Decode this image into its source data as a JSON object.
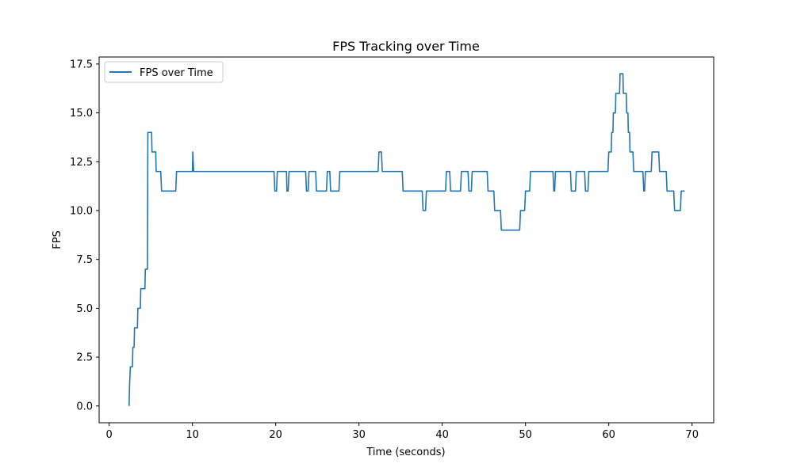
{
  "chart_data": {
    "type": "line",
    "title": "FPS Tracking over Time",
    "xlabel": "Time (seconds)",
    "ylabel": "FPS",
    "xlim": [
      -1.2,
      72.6
    ],
    "ylim": [
      -0.86,
      17.86
    ],
    "xticks": [
      0,
      10,
      20,
      30,
      40,
      50,
      60,
      70
    ],
    "yticks": [
      0.0,
      2.5,
      5.0,
      7.5,
      10.0,
      12.5,
      15.0,
      17.5
    ],
    "ytick_labels": [
      "0.0",
      "2.5",
      "5.0",
      "7.5",
      "10.0",
      "12.5",
      "15.0",
      "17.5"
    ],
    "grid": false,
    "legend": "upper-left",
    "line_color": "#1f77b4",
    "series": [
      {
        "name": "FPS over Time",
        "points": [
          [
            2.4,
            0
          ],
          [
            2.45,
            1
          ],
          [
            2.55,
            2
          ],
          [
            2.8,
            2
          ],
          [
            2.85,
            3
          ],
          [
            3.0,
            3
          ],
          [
            3.05,
            4
          ],
          [
            3.4,
            4
          ],
          [
            3.45,
            5
          ],
          [
            3.75,
            5
          ],
          [
            3.8,
            6
          ],
          [
            4.3,
            6
          ],
          [
            4.35,
            7
          ],
          [
            4.6,
            7
          ],
          [
            4.65,
            14
          ],
          [
            5.1,
            14
          ],
          [
            5.15,
            13
          ],
          [
            5.6,
            13
          ],
          [
            5.65,
            12
          ],
          [
            6.2,
            12
          ],
          [
            6.3,
            11
          ],
          [
            8.0,
            11
          ],
          [
            8.1,
            12
          ],
          [
            10.0,
            12
          ],
          [
            10.05,
            13
          ],
          [
            10.15,
            12
          ],
          [
            19.8,
            12
          ],
          [
            19.9,
            11
          ],
          [
            20.1,
            11
          ],
          [
            20.2,
            12
          ],
          [
            21.3,
            12
          ],
          [
            21.35,
            11
          ],
          [
            21.5,
            11
          ],
          [
            21.6,
            12
          ],
          [
            23.6,
            12
          ],
          [
            23.7,
            11
          ],
          [
            23.9,
            11
          ],
          [
            24.0,
            12
          ],
          [
            24.8,
            12
          ],
          [
            24.9,
            11
          ],
          [
            26.1,
            11
          ],
          [
            26.2,
            12
          ],
          [
            26.5,
            12
          ],
          [
            26.6,
            11
          ],
          [
            27.6,
            11
          ],
          [
            27.7,
            12
          ],
          [
            32.3,
            12
          ],
          [
            32.4,
            13
          ],
          [
            32.7,
            13
          ],
          [
            32.8,
            12
          ],
          [
            35.2,
            12
          ],
          [
            35.3,
            11
          ],
          [
            37.6,
            11
          ],
          [
            37.7,
            10
          ],
          [
            38.0,
            10
          ],
          [
            38.1,
            11
          ],
          [
            40.4,
            11
          ],
          [
            40.5,
            12
          ],
          [
            40.9,
            12
          ],
          [
            41.0,
            11
          ],
          [
            42.2,
            11
          ],
          [
            42.3,
            12
          ],
          [
            43.1,
            12
          ],
          [
            43.2,
            11
          ],
          [
            43.5,
            11
          ],
          [
            43.6,
            12
          ],
          [
            45.4,
            12
          ],
          [
            45.5,
            11
          ],
          [
            46.2,
            11
          ],
          [
            46.3,
            10
          ],
          [
            47.0,
            10
          ],
          [
            47.1,
            9
          ],
          [
            49.3,
            9
          ],
          [
            49.4,
            10
          ],
          [
            49.9,
            10
          ],
          [
            50.0,
            11
          ],
          [
            50.5,
            11
          ],
          [
            50.6,
            12
          ],
          [
            53.3,
            12
          ],
          [
            53.4,
            11
          ],
          [
            53.5,
            11
          ],
          [
            53.6,
            12
          ],
          [
            55.4,
            12
          ],
          [
            55.5,
            11
          ],
          [
            56.0,
            11
          ],
          [
            56.1,
            12
          ],
          [
            57.1,
            12
          ],
          [
            57.2,
            11
          ],
          [
            57.5,
            11
          ],
          [
            57.6,
            12
          ],
          [
            59.9,
            12
          ],
          [
            60.0,
            13
          ],
          [
            60.3,
            13
          ],
          [
            60.35,
            14
          ],
          [
            60.5,
            14
          ],
          [
            60.55,
            15
          ],
          [
            60.8,
            15
          ],
          [
            60.85,
            16
          ],
          [
            61.3,
            16
          ],
          [
            61.35,
            17
          ],
          [
            61.7,
            17
          ],
          [
            61.75,
            16
          ],
          [
            62.1,
            16
          ],
          [
            62.15,
            15
          ],
          [
            62.3,
            15
          ],
          [
            62.35,
            14
          ],
          [
            62.5,
            14
          ],
          [
            62.55,
            13
          ],
          [
            62.9,
            13
          ],
          [
            63.0,
            12
          ],
          [
            64.1,
            12
          ],
          [
            64.2,
            11
          ],
          [
            64.3,
            11
          ],
          [
            64.4,
            12
          ],
          [
            65.1,
            12
          ],
          [
            65.2,
            13
          ],
          [
            66.0,
            13
          ],
          [
            66.1,
            12
          ],
          [
            66.9,
            12
          ],
          [
            67.0,
            11
          ],
          [
            67.8,
            11
          ],
          [
            67.9,
            10
          ],
          [
            68.6,
            10
          ],
          [
            68.7,
            11
          ],
          [
            69.1,
            11
          ]
        ]
      }
    ]
  }
}
